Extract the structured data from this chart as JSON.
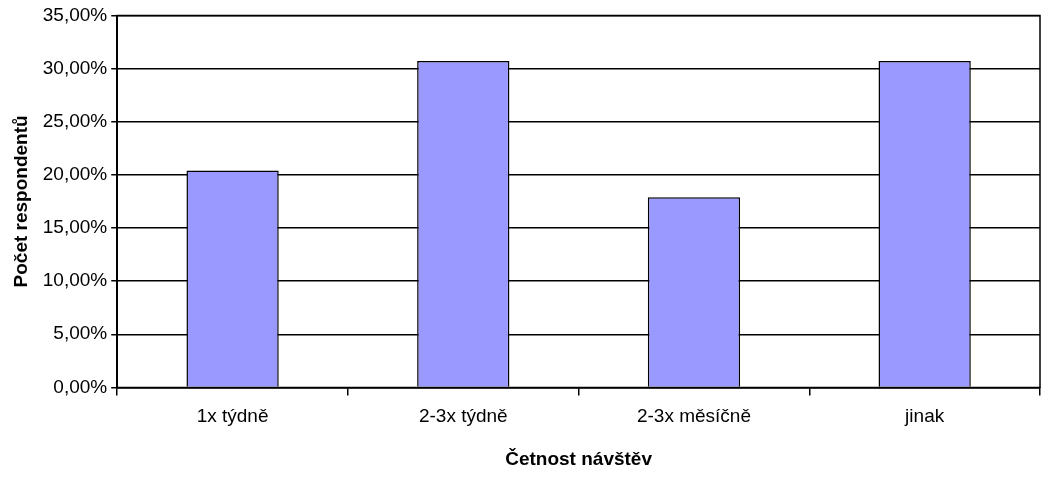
{
  "chart_data": {
    "type": "bar",
    "xlabel": "Četnost návštěv",
    "ylabel": "Počet respondentů",
    "categories": [
      "1x týdně",
      "2-3x týdně",
      "2-3x měsíčně",
      "jinak"
    ],
    "values": [
      20.4,
      30.7,
      17.9,
      30.7
    ],
    "color": "#9999ff",
    "ylim": [
      0,
      35
    ],
    "yticks": [
      {
        "value": 0,
        "label": "0,00%"
      },
      {
        "value": 5,
        "label": "5,00%"
      },
      {
        "value": 10,
        "label": "10,00%"
      },
      {
        "value": 15,
        "label": "15,00%"
      },
      {
        "value": 20,
        "label": "20,00%"
      },
      {
        "value": 25,
        "label": "25,00%"
      },
      {
        "value": 30,
        "label": "30,00%"
      },
      {
        "value": 35,
        "label": "35,00%"
      }
    ],
    "grid": "y",
    "legend": false
  }
}
